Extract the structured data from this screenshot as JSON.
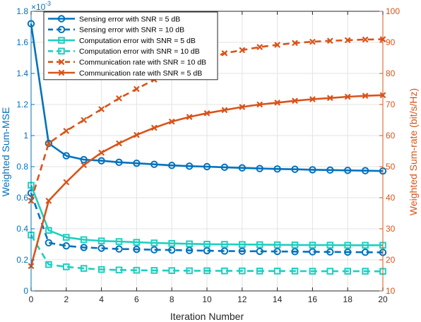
{
  "chart_data": {
    "type": "line",
    "title": "",
    "xlabel": "Iteration Number",
    "ylabel_left": "Weighted Sum-MSE",
    "ylabel_right": "Weighted Sum-rate (bit/s/Hz)",
    "left_exponent_label": "×10",
    "left_exponent_power": "-3",
    "xlim": [
      0,
      20
    ],
    "ylim_left": [
      0,
      1.8
    ],
    "ylim_right": [
      10,
      100
    ],
    "x_ticks": [
      0,
      2,
      4,
      6,
      8,
      10,
      12,
      14,
      16,
      18,
      20
    ],
    "x_tick_labels": [
      "0",
      "2",
      "4",
      "6",
      "8",
      "10",
      "12",
      "14",
      "16",
      "18",
      "20"
    ],
    "y_left_ticks": [
      0,
      0.2,
      0.4,
      0.6,
      0.8,
      1.0,
      1.2,
      1.4,
      1.6,
      1.8
    ],
    "y_left_tick_labels": [
      "0",
      "0.2",
      "0.4",
      "0.6",
      "0.8",
      "1",
      "1.2",
      "1.4",
      "1.6",
      "1.8"
    ],
    "y_right_ticks": [
      10,
      20,
      30,
      40,
      50,
      60,
      70,
      80,
      90,
      100
    ],
    "y_right_tick_labels": [
      "10",
      "20",
      "30",
      "40",
      "50",
      "60",
      "70",
      "80",
      "90",
      "100"
    ],
    "grid": true,
    "legend_position": "top-left",
    "colors": {
      "left_axis": "#0072BD",
      "right_axis": "#D95319",
      "sensing": "#0072BD",
      "computation": "#1FCFC0",
      "communication": "#D95319",
      "grid": "#e3e3e3",
      "frame": "#262626"
    },
    "x": [
      0,
      1,
      2,
      3,
      4,
      5,
      6,
      7,
      8,
      9,
      10,
      11,
      12,
      13,
      14,
      15,
      16,
      17,
      18,
      19,
      20
    ],
    "series": [
      {
        "name": "Sensing error with SNR = 5 dB",
        "axis": "left",
        "color": "#0072BD",
        "dash": "solid",
        "marker": "circle",
        "values": [
          1.72,
          0.95,
          0.87,
          0.845,
          0.838,
          0.828,
          0.822,
          0.815,
          0.808,
          0.803,
          0.8,
          0.796,
          0.792,
          0.788,
          0.785,
          0.783,
          0.78,
          0.778,
          0.776,
          0.774,
          0.772
        ]
      },
      {
        "name": "Sensing error  with SNR = 10 dB",
        "axis": "left",
        "color": "#0072BD",
        "dash": "dashed",
        "marker": "circle",
        "values": [
          0.63,
          0.31,
          0.29,
          0.28,
          0.275,
          0.27,
          0.268,
          0.265,
          0.263,
          0.261,
          0.259,
          0.257,
          0.256,
          0.255,
          0.254,
          0.253,
          0.252,
          0.251,
          0.25,
          0.249,
          0.248
        ]
      },
      {
        "name": "Computation error with SNR = 5 dB",
        "axis": "left",
        "color": "#1FCFC0",
        "dash": "solid",
        "marker": "square",
        "values": [
          0.68,
          0.39,
          0.345,
          0.33,
          0.322,
          0.318,
          0.313,
          0.309,
          0.306,
          0.303,
          0.301,
          0.3,
          0.299,
          0.298,
          0.297,
          0.296,
          0.295,
          0.295,
          0.294,
          0.294,
          0.294
        ]
      },
      {
        "name": "Computation error with SNR = 10 dB",
        "axis": "left",
        "color": "#1FCFC0",
        "dash": "dashed",
        "marker": "square",
        "values": [
          0.36,
          0.17,
          0.155,
          0.145,
          0.138,
          0.135,
          0.133,
          0.132,
          0.131,
          0.13,
          0.13,
          0.129,
          0.129,
          0.128,
          0.128,
          0.128,
          0.127,
          0.127,
          0.127,
          0.127,
          0.126
        ]
      },
      {
        "name": "Communication rate with SNR = 10 dB",
        "axis": "right",
        "color": "#D95319",
        "dash": "dashed",
        "marker": "x",
        "values": [
          39,
          57.5,
          61.5,
          65,
          68.5,
          72,
          75,
          78,
          80.5,
          82.5,
          84.5,
          86.5,
          87.5,
          88.5,
          89.2,
          89.8,
          90.2,
          90.5,
          90.7,
          90.9,
          91
        ]
      },
      {
        "name": "Communication rate with SNR = 5 dB",
        "axis": "right",
        "color": "#D95319",
        "dash": "solid",
        "marker": "x",
        "values": [
          18,
          39,
          45,
          50.5,
          54.5,
          57.5,
          60.2,
          62.5,
          64.5,
          66,
          67.2,
          68.2,
          69.2,
          70,
          70.6,
          71.2,
          71.7,
          72.1,
          72.5,
          72.8,
          73
        ]
      }
    ]
  }
}
